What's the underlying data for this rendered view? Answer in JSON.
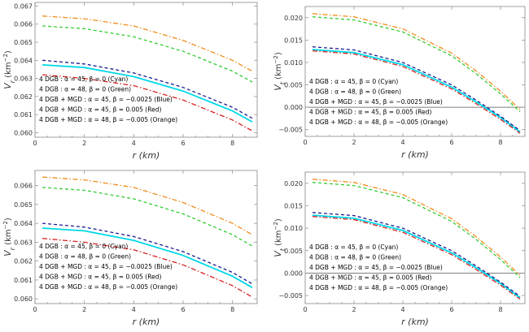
{
  "chart_data": [
    {
      "type": "line",
      "xlabel": "r (km)",
      "ylabel_main": "V",
      "ylabel_sub": "r",
      "ylabel_unit": " (km",
      "ylabel_unit_exp": "−2",
      "ylabel_close": ")",
      "xlim": [
        0,
        9
      ],
      "ylim": [
        0.05975,
        0.0672
      ],
      "xticks": [
        0,
        2,
        4,
        6,
        8
      ],
      "xtick_labels": [
        "0",
        "2",
        "4",
        "6",
        "8"
      ],
      "yticks": [
        0.06,
        0.061,
        0.062,
        0.063,
        0.064,
        0.065,
        0.066,
        0.067
      ],
      "ytick_labels": [
        "0.060",
        "0.061",
        "0.062",
        "0.063",
        "0.064",
        "0.065",
        "0.066",
        "0.067"
      ],
      "legend_position": "bottom-left",
      "series": [
        {
          "name": "4 DGB : α = 45, β = 0 (Cyan)",
          "color": "#00d8e8",
          "dash": "solid",
          "x": [
            0.3,
            2,
            4,
            6,
            8,
            8.8
          ],
          "y": [
            0.06375,
            0.0636,
            0.0631,
            0.0623,
            0.0612,
            0.0606
          ]
        },
        {
          "name": "4 DGB : α = 48, β = 0 (Green)",
          "color": "#33cc33",
          "dash": "dash",
          "x": [
            0.3,
            2,
            4,
            6,
            8,
            8.8
          ],
          "y": [
            0.0659,
            0.06575,
            0.0653,
            0.0645,
            0.0634,
            0.0628
          ]
        },
        {
          "name": "4 DGB + MGD : α = 45, β = −0.0025 (Blue)",
          "color": "#1a1a8c",
          "dash": "dash",
          "x": [
            0.3,
            2,
            4,
            6,
            8,
            8.8
          ],
          "y": [
            0.064,
            0.0638,
            0.0633,
            0.0625,
            0.0614,
            0.0608
          ]
        },
        {
          "name": "4 DGB + MGD : α = 45, β = 0.005 (Red)",
          "color": "#d62020",
          "dash": "dashdot",
          "x": [
            0.3,
            2,
            4,
            6,
            8,
            8.8
          ],
          "y": [
            0.0632,
            0.063,
            0.0626,
            0.0618,
            0.0607,
            0.0601
          ]
        },
        {
          "name": "4 DGB + MGD : α = 48, β = −0.005 (Orange)",
          "color": "#f08c1a",
          "dash": "dashdot",
          "x": [
            0.3,
            2,
            4,
            6,
            8,
            8.8
          ],
          "y": [
            0.06645,
            0.0663,
            0.0659,
            0.0651,
            0.064,
            0.0634
          ]
        }
      ]
    },
    {
      "type": "line",
      "xlabel": "r (km)",
      "ylabel_main": "V",
      "ylabel_sub": "t",
      "ylabel_unit": " (km",
      "ylabel_unit_exp": "−2",
      "ylabel_close": ")",
      "xlim": [
        0,
        9
      ],
      "ylim": [
        -0.0065,
        0.0225
      ],
      "zero_line": true,
      "xticks": [
        0,
        2,
        4,
        6,
        8
      ],
      "xtick_labels": [
        "0",
        "2",
        "4",
        "6",
        "8"
      ],
      "yticks": [
        -0.005,
        0,
        0.005,
        0.01,
        0.015,
        0.02
      ],
      "ytick_labels": [
        "−0.005",
        "0.000",
        "0.005",
        "0.010",
        "0.015",
        "0.020"
      ],
      "legend_position": "bottom-left",
      "series": [
        {
          "name": "4 DGB : α = 45, β = 0 (Cyan)",
          "color": "#00d8e8",
          "dash": "solid",
          "x": [
            0.3,
            2,
            4,
            6,
            7,
            8,
            8.8
          ],
          "y": [
            0.0129,
            0.0122,
            0.0095,
            0.0045,
            0.0012,
            -0.0023,
            -0.0055
          ]
        },
        {
          "name": "4 DGB : α = 48, β = 0 (Green)",
          "color": "#33cc33",
          "dash": "dash",
          "x": [
            0.3,
            2,
            4,
            6,
            7,
            8,
            8.8
          ],
          "y": [
            0.0202,
            0.0195,
            0.0168,
            0.0115,
            0.0075,
            0.003,
            -0.001
          ]
        },
        {
          "name": "4 DGB + MGD : α = 45, β = −0.0025 (Blue)",
          "color": "#1a1a8c",
          "dash": "dash",
          "x": [
            0.3,
            2,
            4,
            6,
            7,
            8,
            8.8
          ],
          "y": [
            0.0135,
            0.0128,
            0.01,
            0.005,
            0.0016,
            -0.002,
            -0.0052
          ]
        },
        {
          "name": "4 DGB + MGD : α = 45, β = 0.005 (Red)",
          "color": "#d62020",
          "dash": "dashdot",
          "x": [
            0.3,
            2,
            4,
            6,
            7,
            8,
            8.8
          ],
          "y": [
            0.0126,
            0.0119,
            0.0091,
            0.0041,
            0.0008,
            -0.0027,
            -0.0058
          ]
        },
        {
          "name": "4 DGB + MGD : α = 48, β = −0.005 (Orange)",
          "color": "#f08c1a",
          "dash": "dashdot",
          "x": [
            0.3,
            2,
            4,
            6,
            7,
            8,
            8.8
          ],
          "y": [
            0.0209,
            0.0202,
            0.0175,
            0.0121,
            0.0081,
            0.0036,
            -0.0005
          ]
        }
      ]
    },
    {
      "type": "line",
      "xlabel": "r (km)",
      "ylabel_main": "V",
      "ylabel_sub": "r",
      "ylabel_unit": " (km",
      "ylabel_unit_exp": "−2",
      "ylabel_close": ")",
      "xlim": [
        0,
        9
      ],
      "ylim": [
        0.05975,
        0.0668
      ],
      "xticks": [
        0,
        2,
        4,
        6,
        8
      ],
      "xtick_labels": [
        "0",
        "2",
        "4",
        "6",
        "8"
      ],
      "yticks": [
        0.06,
        0.061,
        0.062,
        0.063,
        0.064,
        0.065,
        0.066
      ],
      "ytick_labels": [
        "0.060",
        "0.061",
        "0.062",
        "0.063",
        "0.064",
        "0.065",
        "0.066"
      ],
      "legend_position": "bottom-left",
      "series": [
        {
          "name": "4 DGB : α = 45, β = 0 (Cyan)",
          "color": "#00d8e8",
          "dash": "solid",
          "x": [
            0.3,
            2,
            4,
            6,
            8,
            8.8
          ],
          "y": [
            0.06375,
            0.0636,
            0.0631,
            0.0623,
            0.0612,
            0.0606
          ]
        },
        {
          "name": "4 DGB : α = 48, β = 0 (Green)",
          "color": "#33cc33",
          "dash": "dash",
          "x": [
            0.3,
            2,
            4,
            6,
            8,
            8.8
          ],
          "y": [
            0.0659,
            0.06575,
            0.0653,
            0.0645,
            0.0634,
            0.0628
          ]
        },
        {
          "name": "4 DGB + MGD : α = 45, β = −0.0025 (Blue)",
          "color": "#1a1a8c",
          "dash": "dash",
          "x": [
            0.3,
            2,
            4,
            6,
            8,
            8.8
          ],
          "y": [
            0.064,
            0.0638,
            0.0633,
            0.0625,
            0.0614,
            0.0608
          ]
        },
        {
          "name": "4 DGB + MGD : α = 45, β = 0.005 (Red)",
          "color": "#d62020",
          "dash": "dashdot",
          "x": [
            0.3,
            2,
            4,
            6,
            8,
            8.8
          ],
          "y": [
            0.0632,
            0.063,
            0.0626,
            0.0618,
            0.0607,
            0.0601
          ]
        },
        {
          "name": "4 DGB + MGD : α = 48, β = −0.005 (Orange)",
          "color": "#f08c1a",
          "dash": "dashdot",
          "x": [
            0.3,
            2,
            4,
            6,
            8,
            8.8
          ],
          "y": [
            0.06645,
            0.0663,
            0.0659,
            0.0651,
            0.064,
            0.0634
          ]
        }
      ]
    },
    {
      "type": "line",
      "xlabel": "r (km)",
      "ylabel_main": "V",
      "ylabel_sub": "t",
      "ylabel_unit": " (km",
      "ylabel_unit_exp": "−2",
      "ylabel_close": ")",
      "xlim": [
        0,
        9
      ],
      "ylim": [
        -0.0068,
        0.0225
      ],
      "zero_line": true,
      "xticks": [
        0,
        2,
        4,
        6,
        8
      ],
      "xtick_labels": [
        "0",
        "2",
        "4",
        "6",
        "8"
      ],
      "yticks": [
        -0.005,
        0,
        0.005,
        0.01,
        0.015,
        0.02
      ],
      "ytick_labels": [
        "−0.005",
        "0.000",
        "0.005",
        "0.010",
        "0.015",
        "0.020"
      ],
      "legend_position": "bottom-left",
      "series": [
        {
          "name": "4 DGB : α = 45, β = 0 (Cyan)",
          "color": "#00d8e8",
          "dash": "solid",
          "x": [
            0.3,
            2,
            4,
            6,
            7,
            8,
            8.8
          ],
          "y": [
            0.0129,
            0.0122,
            0.0095,
            0.0045,
            0.0012,
            -0.0023,
            -0.0055
          ]
        },
        {
          "name": "4 DGB : α = 48, β = 0 (Green)",
          "color": "#33cc33",
          "dash": "dash",
          "x": [
            0.3,
            2,
            4,
            6,
            7,
            8,
            8.8
          ],
          "y": [
            0.0202,
            0.0195,
            0.0168,
            0.0115,
            0.0075,
            0.003,
            -0.001
          ]
        },
        {
          "name": "4 DGB + MGD : α = 45, β = −0.0025 (Blue)",
          "color": "#1a1a8c",
          "dash": "dash",
          "x": [
            0.3,
            2,
            4,
            6,
            7,
            8,
            8.8
          ],
          "y": [
            0.0135,
            0.0128,
            0.01,
            0.005,
            0.0016,
            -0.002,
            -0.0052
          ]
        },
        {
          "name": "4 DGB + MGD : α = 45, β = 0.005 (Red)",
          "color": "#d62020",
          "dash": "dashdot",
          "x": [
            0.3,
            2,
            4,
            6,
            7,
            8,
            8.8
          ],
          "y": [
            0.0126,
            0.0119,
            0.0091,
            0.0041,
            0.0008,
            -0.0027,
            -0.0058
          ]
        },
        {
          "name": "4 DGB + MGD : α = 48, β = −0.005 (Orange)",
          "color": "#f08c1a",
          "dash": "dashdot",
          "x": [
            0.3,
            2,
            4,
            6,
            7,
            8,
            8.8
          ],
          "y": [
            0.0209,
            0.0202,
            0.0175,
            0.0121,
            0.0081,
            0.0036,
            -0.0005
          ]
        }
      ]
    }
  ]
}
